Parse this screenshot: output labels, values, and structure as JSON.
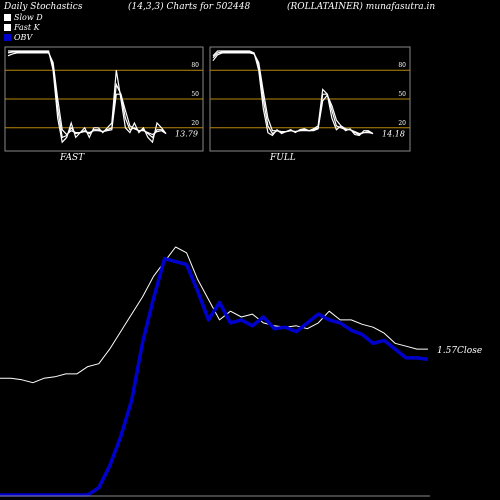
{
  "header": {
    "left": "Daily Stochastics",
    "middle": "(14,3,3) Charts for 502448",
    "right": "(ROLLATAINER) munafasutra.in"
  },
  "legend": [
    {
      "label": "Slow  D",
      "color": "#ffffff"
    },
    {
      "label": "Fast K",
      "color": "#ffffff"
    },
    {
      "label": "OBV",
      "color": "#0000cc"
    }
  ],
  "chart_data": [
    {
      "type": "line",
      "panel": "FAST",
      "title": "FAST",
      "ylim": [
        0,
        100
      ],
      "levels": [
        20,
        50,
        80
      ],
      "level_color": "#b8860b",
      "last_value_label": "13.79",
      "series": [
        {
          "values": [
            100,
            100,
            100,
            100,
            100,
            100,
            100,
            100,
            100,
            100,
            80,
            30,
            5,
            10,
            25,
            10,
            15,
            20,
            10,
            20,
            20,
            15,
            20,
            25,
            80,
            50,
            20,
            15,
            25,
            15,
            20,
            10,
            5,
            25,
            20,
            14
          ]
        },
        {
          "values": [
            98,
            99,
            99,
            99,
            99,
            99,
            99,
            99,
            99,
            99,
            85,
            40,
            10,
            12,
            20,
            14,
            15,
            17,
            14,
            18,
            18,
            16,
            18,
            20,
            65,
            55,
            30,
            18,
            20,
            17,
            18,
            14,
            10,
            18,
            18,
            14
          ]
        },
        {
          "values": [
            95,
            97,
            98,
            98,
            98,
            98,
            98,
            98,
            98,
            98,
            88,
            50,
            18,
            13,
            17,
            15,
            15,
            16,
            15,
            17,
            17,
            16,
            17,
            18,
            55,
            55,
            38,
            22,
            19,
            17,
            17,
            15,
            13,
            16,
            17,
            14
          ]
        }
      ]
    },
    {
      "type": "line",
      "panel": "FULL",
      "title": "FULL",
      "ylim": [
        0,
        100
      ],
      "levels": [
        20,
        50,
        80
      ],
      "level_color": "#b8860b",
      "last_value_label": "14.18",
      "series": [
        {
          "values": [
            95,
            100,
            100,
            100,
            100,
            100,
            100,
            100,
            100,
            98,
            80,
            40,
            15,
            12,
            18,
            14,
            16,
            18,
            15,
            18,
            19,
            17,
            19,
            22,
            60,
            55,
            30,
            18,
            22,
            17,
            19,
            13,
            12,
            17,
            17,
            14
          ]
        },
        {
          "values": [
            93,
            98,
            99,
            99,
            99,
            99,
            99,
            99,
            99,
            97,
            85,
            50,
            22,
            14,
            17,
            15,
            16,
            17,
            16,
            17,
            18,
            17,
            18,
            20,
            55,
            55,
            38,
            22,
            20,
            18,
            18,
            15,
            13,
            15,
            16,
            14
          ]
        },
        {
          "values": [
            90,
            96,
            98,
            98,
            98,
            98,
            98,
            98,
            98,
            97,
            88,
            58,
            30,
            17,
            17,
            16,
            16,
            17,
            16,
            17,
            17,
            17,
            17,
            19,
            48,
            54,
            43,
            28,
            22,
            19,
            18,
            16,
            14,
            15,
            15,
            14
          ]
        }
      ]
    },
    {
      "type": "line",
      "panel": "OBV",
      "series": [
        {
          "name": "Close",
          "color": "#ffffff",
          "label": "1.57Close",
          "values": [
            60,
            60,
            59,
            57,
            60,
            61,
            63,
            63,
            68,
            70,
            80,
            92,
            104,
            116,
            130,
            140,
            150,
            146,
            128,
            114,
            100,
            106,
            102,
            104,
            98,
            96,
            95,
            96,
            94,
            98,
            106,
            100,
            100,
            97,
            95,
            91,
            84,
            82,
            80,
            80
          ]
        },
        {
          "name": "OBV",
          "color": "#0000cc",
          "values": [
            -20,
            -20,
            -20,
            -20,
            -20,
            -20,
            -20,
            -20,
            -20,
            -15,
            0,
            20,
            45,
            85,
            115,
            142,
            140,
            138,
            120,
            100,
            112,
            98,
            100,
            96,
            102,
            94,
            95,
            92,
            98,
            104,
            100,
            98,
            93,
            90,
            84,
            86,
            80,
            74,
            74,
            73
          ]
        }
      ]
    }
  ]
}
